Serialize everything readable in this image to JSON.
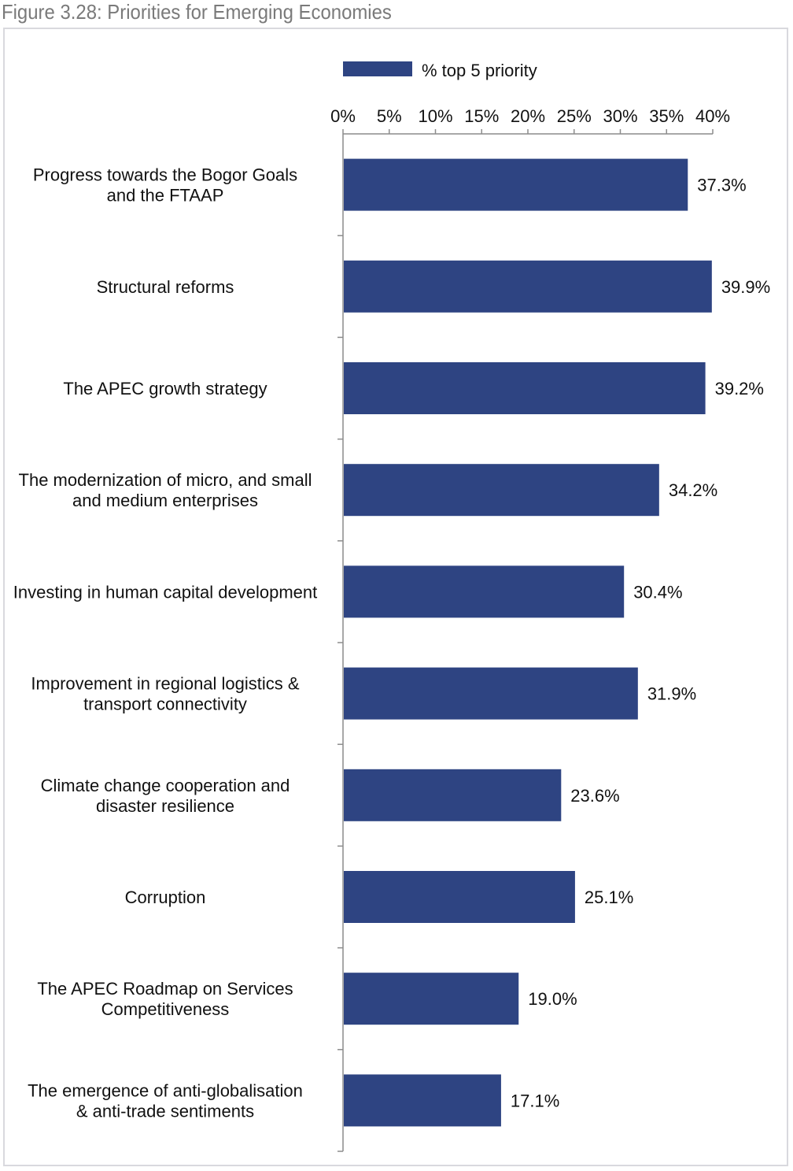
{
  "figure_title": "Figure 3.28: Priorities for Emerging Economies",
  "colors": {
    "bar": "#2e4482",
    "axis": "#8c8c8c",
    "frame": "#d9d9de",
    "title": "#7a7a7a"
  },
  "chart_data": {
    "type": "bar",
    "orientation": "horizontal",
    "title": "Figure 3.28: Priorities for Emerging Economies",
    "xlabel": "",
    "ylabel": "",
    "xlim": [
      0,
      40
    ],
    "x_ticks": [
      0,
      5,
      10,
      15,
      20,
      25,
      30,
      35,
      40
    ],
    "x_tick_labels": [
      "0%",
      "5%",
      "10%",
      "15%",
      "20%",
      "25%",
      "30%",
      "35%",
      "40%"
    ],
    "axis_position": "top",
    "legend": {
      "position": "top-center",
      "entries": [
        "% top 5 priority"
      ]
    },
    "grid": false,
    "series": [
      {
        "name": "% top 5 priority",
        "values": [
          37.3,
          39.9,
          39.2,
          34.2,
          30.4,
          31.9,
          23.6,
          25.1,
          19.0,
          17.1
        ],
        "value_labels": [
          "37.3%",
          "39.9%",
          "39.2%",
          "34.2%",
          "30.4%",
          "31.9%",
          "23.6%",
          "25.1%",
          "19.0%",
          "17.1%"
        ]
      }
    ],
    "categories": [
      [
        "Progress towards the Bogor Goals",
        "and the FTAAP"
      ],
      [
        "Structural reforms"
      ],
      [
        "The APEC growth strategy"
      ],
      [
        "The modernization of micro, and small",
        "and medium enterprises"
      ],
      [
        "Investing in human capital development"
      ],
      [
        "Improvement in regional logistics &",
        "transport connectivity"
      ],
      [
        "Climate change cooperation and",
        "disaster resilience"
      ],
      [
        "Corruption"
      ],
      [
        "The APEC Roadmap on Services",
        "Competitiveness"
      ],
      [
        "The emergence of anti-globalisation",
        "& anti-trade sentiments"
      ]
    ]
  }
}
